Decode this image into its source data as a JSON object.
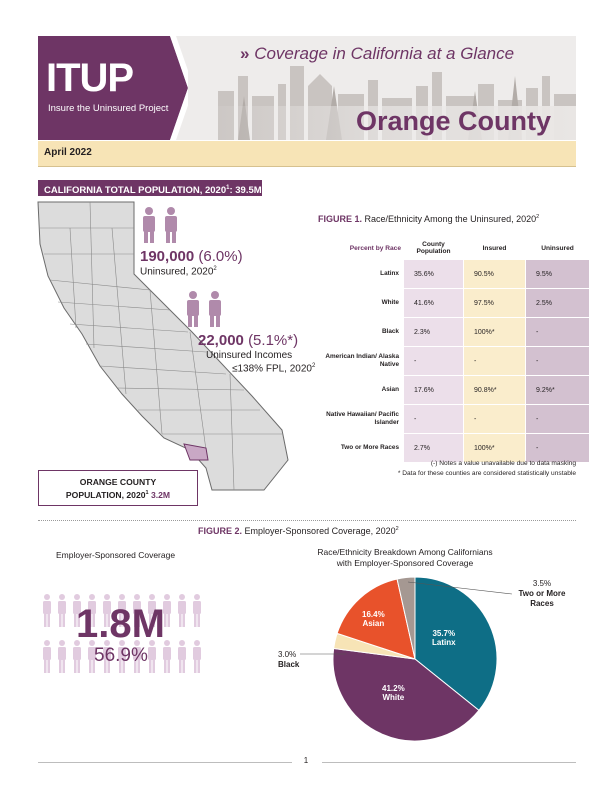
{
  "header": {
    "logo_text": "ITUP",
    "logo_subtitle": "Insure the Uninsured Project",
    "title": "Coverage in California at a Glance",
    "title_prefix": "»",
    "county": "Orange County",
    "date": "April 2022",
    "colors": {
      "plum": "#6e3565",
      "cream": "#f7e4b6"
    }
  },
  "population": {
    "banner_label": "CALIFORNIA TOTAL POPULATION, 2020",
    "banner_sup": "1",
    "banner_value": ": 39.5M",
    "uninsured_count": "190,000",
    "uninsured_pct": "(6.0%)",
    "uninsured_label": "Uninsured, 2020",
    "uninsured_sup": "2",
    "low_income_count": "22,000",
    "low_income_pct": "(5.1%*)",
    "low_income_label1": "Uninsured Incomes",
    "low_income_label2": "≤138% FPL, 2020",
    "low_income_sup": "2",
    "county_pop_label1": "ORANGE COUNTY",
    "county_pop_label2": "POPULATION, 2020",
    "county_pop_sup": "1",
    "county_pop_value": "3.2M"
  },
  "figure1": {
    "label": "FIGURE 1.",
    "title": "Race/Ethnicity Among the Uninsured, 2020",
    "title_sup": "2",
    "header_percent": "Percent by Race",
    "header_county": "County Population",
    "header_insured": "Insured",
    "header_uninsured": "Uninsured",
    "rows": [
      {
        "race": "Latinx",
        "county": "35.6%",
        "insured": "90.5%",
        "uninsured": "9.5%"
      },
      {
        "race": "White",
        "county": "41.6%",
        "insured": "97.5%",
        "uninsured": "2.5%"
      },
      {
        "race": "Black",
        "county": "2.3%",
        "insured": "100%*",
        "uninsured": "-"
      },
      {
        "race": "American Indian/ Alaska Native",
        "county": "-",
        "insured": "-",
        "uninsured": "-"
      },
      {
        "race": "Asian",
        "county": "17.6%",
        "insured": "90.8%*",
        "uninsured": "9.2%*"
      },
      {
        "race": "Native Hawaiian/ Pacific Islander",
        "county": "-",
        "insured": "-",
        "uninsured": "-"
      },
      {
        "race": "Two or More Races",
        "county": "2.7%",
        "insured": "100%*",
        "uninsured": "-"
      }
    ],
    "note1": "(-) Notes a value unavailable due to data masking",
    "note2": "* Data for these counties are considered statistically unstable"
  },
  "figure2": {
    "label": "FIGURE 2.",
    "title": "Employer-Sponsored Coverage, 2020",
    "title_sup": "2",
    "left_title": "Employer-Sponsored Coverage",
    "big_value": "1.8M",
    "big_pct": "56.9%",
    "pie_title1": "Race/Ethnicity Breakdown Among Californians",
    "pie_title2": "with Employer-Sponsored Coverage"
  },
  "chart_data": {
    "type": "pie",
    "title": "Race/Ethnicity Breakdown Among Californians with Employer-Sponsored Coverage",
    "slices": [
      {
        "name": "Latinx",
        "value": 35.7,
        "label": "35.7%",
        "color": "#0e6e86"
      },
      {
        "name": "White",
        "value": 41.2,
        "label": "41.2%",
        "color": "#6e3565"
      },
      {
        "name": "Black",
        "value": 3.0,
        "label": "3.0%",
        "color": "#f7e4b6"
      },
      {
        "name": "Asian",
        "value": 16.4,
        "label": "16.4%",
        "color": "#e8522b"
      },
      {
        "name": "Two or More Races",
        "value": 3.5,
        "label": "3.5%",
        "color": "#a59892"
      }
    ],
    "legend": "none"
  },
  "footer": {
    "page_number": "1"
  }
}
